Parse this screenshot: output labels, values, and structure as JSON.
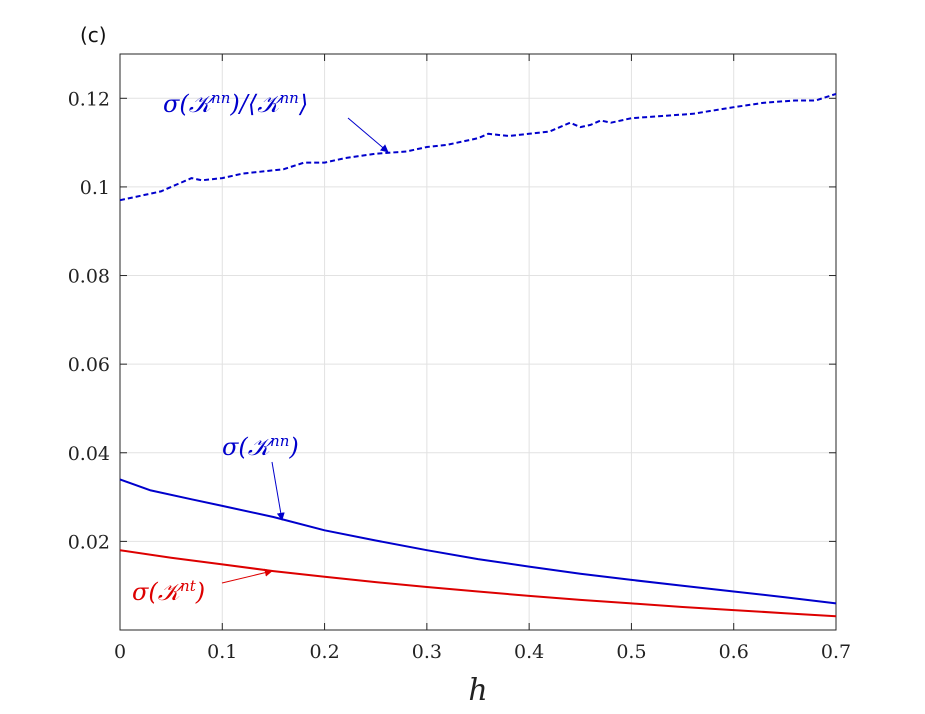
{
  "chart_data": {
    "type": "line",
    "panel_label": "(c)",
    "xlabel": "h",
    "ylabel": "",
    "xlim": [
      0,
      0.7
    ],
    "ylim": [
      0,
      0.13
    ],
    "xticks": [
      0,
      0.1,
      0.2,
      0.3,
      0.4,
      0.5,
      0.6,
      0.7
    ],
    "xtick_labels": [
      "0",
      "0.1",
      "0.2",
      "0.3",
      "0.4",
      "0.5",
      "0.6",
      "0.7"
    ],
    "yticks": [
      0.02,
      0.04,
      0.06,
      0.08,
      0.1,
      0.12
    ],
    "ytick_labels": [
      "0.02",
      "0.04",
      "0.06",
      "0.08",
      "0.1",
      "0.12"
    ],
    "grid": true,
    "legend": "none",
    "series": [
      {
        "label_main": "σ(𝒦",
        "label_sup": "nn",
        "label_end": ")/⟨𝒦",
        "label_sup2": "nn",
        "label_end2": "⟩",
        "color": "#0000cc",
        "style": "dashed",
        "x": [
          0,
          0.02,
          0.04,
          0.05,
          0.06,
          0.07,
          0.08,
          0.1,
          0.12,
          0.14,
          0.16,
          0.18,
          0.2,
          0.22,
          0.25,
          0.28,
          0.3,
          0.32,
          0.35,
          0.36,
          0.38,
          0.4,
          0.42,
          0.44,
          0.45,
          0.46,
          0.47,
          0.48,
          0.5,
          0.53,
          0.56,
          0.6,
          0.63,
          0.66,
          0.68,
          0.7
        ],
        "y": [
          0.097,
          0.098,
          0.099,
          0.1,
          0.101,
          0.102,
          0.1015,
          0.102,
          0.103,
          0.1035,
          0.104,
          0.1055,
          0.1055,
          0.1065,
          0.1075,
          0.108,
          0.109,
          0.1095,
          0.111,
          0.112,
          0.1115,
          0.112,
          0.1125,
          0.1145,
          0.1135,
          0.114,
          0.115,
          0.1145,
          0.1155,
          0.116,
          0.1165,
          0.118,
          0.119,
          0.1195,
          0.1195,
          0.121
        ]
      },
      {
        "label_main": "σ(𝒦",
        "label_sup": "nn",
        "label_end": ")",
        "color": "#0000cc",
        "style": "solid",
        "x": [
          0,
          0.03,
          0.07,
          0.1,
          0.15,
          0.2,
          0.25,
          0.3,
          0.35,
          0.4,
          0.45,
          0.5,
          0.55,
          0.6,
          0.65,
          0.7
        ],
        "y": [
          0.034,
          0.0315,
          0.0295,
          0.028,
          0.0255,
          0.0225,
          0.0202,
          0.018,
          0.016,
          0.0143,
          0.0127,
          0.0113,
          0.01,
          0.0087,
          0.0074,
          0.006
        ]
      },
      {
        "label_main": "σ(𝒦",
        "label_sup": "nt",
        "label_end": ")",
        "color": "#dd0000",
        "style": "solid",
        "x": [
          0,
          0.05,
          0.1,
          0.15,
          0.2,
          0.25,
          0.3,
          0.35,
          0.4,
          0.45,
          0.5,
          0.55,
          0.6,
          0.65,
          0.7
        ],
        "y": [
          0.018,
          0.0163,
          0.0148,
          0.0133,
          0.012,
          0.0108,
          0.0097,
          0.0087,
          0.0077,
          0.0068,
          0.006,
          0.0052,
          0.0045,
          0.0038,
          0.0031
        ]
      }
    ]
  }
}
